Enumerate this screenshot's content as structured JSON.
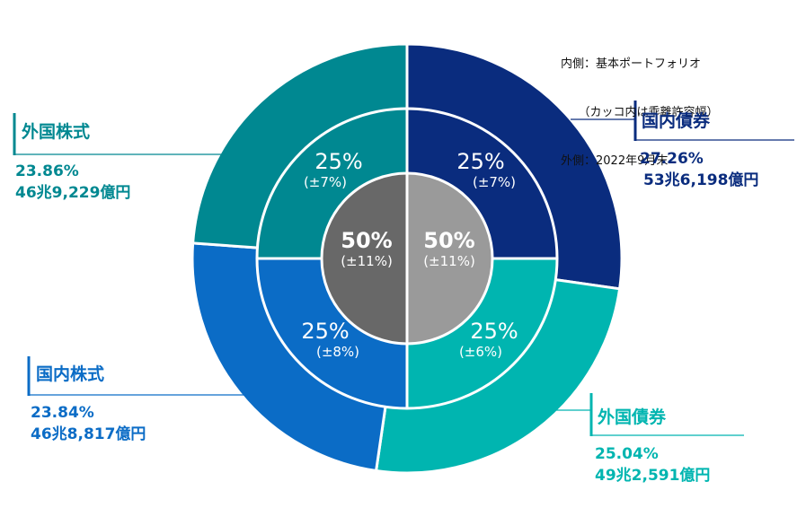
{
  "legend_note": {
    "inner_label": "内側：基本ポートフォリオ",
    "inner_sub": "　　（カッコ内は乖離許容幅）",
    "outer_label": "外側：2022年9月末"
  },
  "colors": {
    "domestic_bonds": "#0A2C7E",
    "foreign_bonds": "#00B5B0",
    "domestic_stocks": "#0B6CC6",
    "foreign_stocks": "#008891",
    "bonds_core": "#9A9A9A",
    "stocks_core": "#686868"
  },
  "callouts": {
    "domestic_bonds": {
      "title": "国内債券",
      "pct": "27.26%",
      "amount": "53兆6,198億円"
    },
    "foreign_bonds": {
      "title": "外国債券",
      "pct": "25.04%",
      "amount": "49兆2,591億円"
    },
    "domestic_stocks": {
      "title": "国内株式",
      "pct": "23.84%",
      "amount": "46兆8,817億円"
    },
    "foreign_stocks": {
      "title": "外国株式",
      "pct": "23.86%",
      "amount": "46兆9,229億円"
    }
  },
  "middle_labels": {
    "domestic_bonds": {
      "main": "25%",
      "tol": "(±7%)"
    },
    "foreign_bonds": {
      "main": "25%",
      "tol": "(±6%)"
    },
    "domestic_stocks": {
      "main": "25%",
      "tol": "(±8%)"
    },
    "foreign_stocks": {
      "main": "25%",
      "tol": "(±7%)"
    }
  },
  "core_labels": {
    "stocks": {
      "main": "50%",
      "tol": "(±11%)"
    },
    "bonds": {
      "main": "50%",
      "tol": "(±11%)"
    }
  },
  "chart_data": {
    "type": "pie",
    "title": "",
    "subtype": "nested-donut",
    "notes": [
      "内側：基本ポートフォリオ（カッコ内は乖離許容幅）",
      "外側：2022年9月末"
    ],
    "outer_ring": {
      "label": "2022年9月末",
      "categories": [
        "国内債券",
        "外国債券",
        "国内株式",
        "外国株式"
      ],
      "values": [
        27.26,
        25.04,
        23.84,
        23.86
      ],
      "amounts": [
        "53兆6,198億円",
        "49兆2,591億円",
        "46兆8,817億円",
        "46兆9,229億円"
      ]
    },
    "middle_ring": {
      "label": "基本ポートフォリオ",
      "categories": [
        "国内債券",
        "外国債券",
        "国内株式",
        "外国株式"
      ],
      "values": [
        25,
        25,
        25,
        25
      ],
      "tolerance": [
        7,
        6,
        8,
        7
      ]
    },
    "inner_ring": {
      "categories": [
        "債券",
        "株式"
      ],
      "values": [
        50,
        50
      ],
      "tolerance": [
        11,
        11
      ]
    },
    "colors": [
      "#0A2C7E",
      "#00B5B0",
      "#0B6CC6",
      "#008891"
    ]
  }
}
